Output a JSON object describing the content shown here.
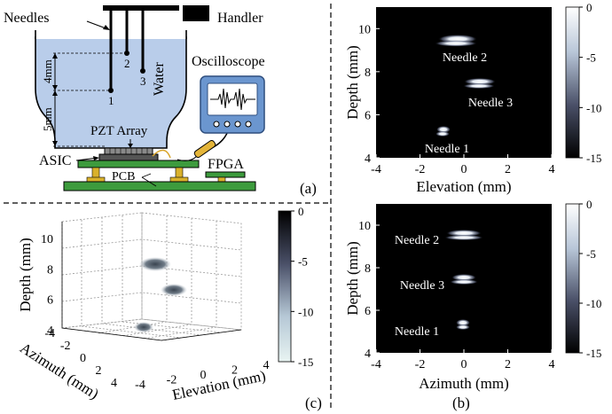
{
  "panel_a": {
    "panel_label": "(a)",
    "labels": {
      "needles": "Needles",
      "handler": "Handler",
      "water": "Water",
      "oscilloscope": "Oscilloscope",
      "pzt_array": "PZT Array",
      "asic": "ASIC",
      "fpga": "FPGA",
      "pcb": "PCB",
      "dim_4mm": "4mm",
      "dim_5mm": "5mm",
      "needle_1": "1",
      "needle_2": "2",
      "needle_3": "3"
    },
    "colors": {
      "water": "#b9cdea",
      "pcb": "#3d9b3d",
      "pads": "#d9b12c",
      "scope_screen": "#ffffff",
      "scope_frame": "#5b88c4"
    }
  },
  "panel_b": {
    "panel_label": "(b)",
    "top": {
      "xlabel": "Elevation (mm)",
      "ylabel": "Depth (mm)",
      "xticks": [
        "-4",
        "-2",
        "0",
        "2",
        "4"
      ],
      "yticks": [
        "4",
        "6",
        "8",
        "10"
      ],
      "annotations": [
        "Needle 2",
        "Needle 3",
        "Needle 1"
      ],
      "colorbar_ticks": [
        "0",
        "-5",
        "-10",
        "-15"
      ]
    },
    "bottom": {
      "xlabel": "Azimuth (mm)",
      "ylabel": "Depth (mm)",
      "xticks": [
        "-4",
        "-2",
        "0",
        "2",
        "4"
      ],
      "yticks": [
        "4",
        "6",
        "8",
        "10"
      ],
      "annotations": [
        "Needle 2",
        "Needle 3",
        "Needle 1"
      ],
      "colorbar_ticks": [
        "0",
        "-5",
        "-10",
        "-15"
      ]
    }
  },
  "panel_c": {
    "panel_label": "(c)",
    "zlabel": "Depth (mm)",
    "xlabel": "Elevation (mm)",
    "ylabel": "Azimuth (mm)",
    "zticks": [
      "4",
      "6",
      "8",
      "10"
    ],
    "xticks": [
      "-4",
      "-2",
      "0",
      "2",
      "4"
    ],
    "yticks": [
      "-4",
      "-2",
      "0",
      "2",
      "4"
    ],
    "colorbar_ticks": [
      "0",
      "-5",
      "-10",
      "-15"
    ]
  }
}
